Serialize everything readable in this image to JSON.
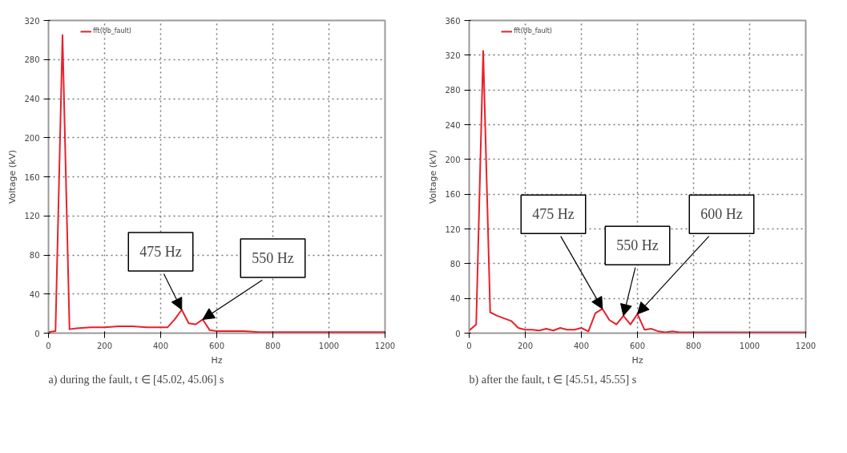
{
  "chart_data": [
    {
      "type": "line",
      "xlabel": "Hz",
      "ylabel": "Voltage (kV)",
      "subtitle": "a) during the fault, t ∈ [45.02, 45.06] s",
      "x": [
        0,
        25,
        50,
        75,
        100,
        150,
        200,
        250,
        300,
        350,
        400,
        425,
        450,
        475,
        500,
        525,
        550,
        575,
        600,
        650,
        700,
        750,
        800,
        900,
        1000,
        1100,
        1200
      ],
      "series": [
        {
          "name": "fft(Ub_fault)",
          "color": "#e8202a",
          "values": [
            1,
            2,
            305,
            4,
            5,
            6,
            6,
            7,
            7,
            6,
            6,
            6,
            14,
            24,
            10,
            9,
            14,
            3,
            2,
            2,
            2,
            1,
            1,
            1,
            1,
            1,
            1
          ]
        }
      ],
      "xlim": [
        0,
        1200
      ],
      "xticks": [
        0,
        200,
        400,
        600,
        800,
        1000,
        1200
      ],
      "ylim": [
        0,
        320
      ],
      "yticks": [
        0,
        40,
        80,
        120,
        160,
        200,
        240,
        280,
        320
      ],
      "annotations": [
        {
          "text": "475 Hz",
          "x": 475,
          "y": 24
        },
        {
          "text": "550 Hz",
          "x": 550,
          "y": 14
        }
      ],
      "grid": true,
      "legend": "top left",
      "line_style": "solid",
      "marker": "none"
    },
    {
      "type": "line",
      "xlabel": "Hz",
      "ylabel": "Voltage (kV)",
      "subtitle": "b) after the fault, t ∈ [45.51, 45.55] s",
      "x": [
        0,
        25,
        50,
        75,
        100,
        125,
        150,
        175,
        200,
        225,
        250,
        275,
        300,
        325,
        350,
        375,
        400,
        425,
        450,
        475,
        500,
        525,
        550,
        575,
        600,
        625,
        650,
        675,
        700,
        725,
        750,
        800,
        900,
        1000,
        1100,
        1200
      ],
      "series": [
        {
          "name": "fft(Ub_fault)",
          "color": "#e8202a",
          "values": [
            3,
            10,
            325,
            24,
            20,
            17,
            14,
            6,
            4,
            4,
            3,
            5,
            3,
            6,
            4,
            4,
            6,
            2,
            23,
            28,
            15,
            10,
            20,
            10,
            22,
            4,
            5,
            2,
            1,
            2,
            1,
            1,
            1,
            1,
            1,
            1
          ]
        }
      ],
      "xlim": [
        0,
        1200
      ],
      "xticks": [
        0,
        200,
        400,
        600,
        800,
        1000,
        1200
      ],
      "ylim": [
        0,
        360
      ],
      "yticks": [
        0,
        40,
        80,
        120,
        160,
        200,
        240,
        280,
        320,
        360
      ],
      "annotations": [
        {
          "text": "475 Hz",
          "x": 475,
          "y": 28
        },
        {
          "text": "550 Hz",
          "x": 550,
          "y": 20
        },
        {
          "text": "600 Hz",
          "x": 600,
          "y": 22
        }
      ],
      "grid": true,
      "legend": "top left",
      "line_style": "solid",
      "marker": "none"
    }
  ]
}
